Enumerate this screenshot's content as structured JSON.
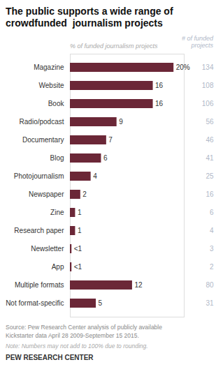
{
  "chart_data": {
    "type": "bar",
    "orientation": "horizontal",
    "title": "The public supports a wide range of\ncrowdfunded  journalism projects",
    "xlabel": "% of funded journalism projects",
    "categories": [
      "Magazine",
      "Website",
      "Book",
      "Radio/podcast",
      "Documentary",
      "Blog",
      "Photojournalism",
      "Newspaper",
      "Zine",
      "Research paper",
      "Newsletter",
      "App",
      "Multiple formats",
      "Not format-specific"
    ],
    "values": [
      20,
      16,
      16,
      9,
      7,
      6,
      4,
      2,
      1,
      1,
      0.3,
      0.3,
      12,
      5
    ],
    "value_labels": [
      "20%",
      "16",
      "16",
      "9",
      "7",
      "6",
      "4",
      "2",
      "1",
      "1",
      "<1",
      "<1",
      "12",
      "5"
    ],
    "data_labels": true,
    "counts_label": "# of funded\nprojects",
    "counts": [
      134,
      108,
      106,
      56,
      46,
      41,
      25,
      16,
      6,
      4,
      3,
      2,
      80,
      31
    ],
    "color": "#6b2737",
    "xlim": [
      0,
      22
    ],
    "tick_labels": "y",
    "grid": false,
    "source": "Source: Pew Research Center analysis of publicly available\nKickstarter data April 28 2009-September 15 2015.",
    "note": "Note: Numbers may not add to 100% due to rounding.",
    "credit": "PEW RESEARCH CENTER"
  }
}
